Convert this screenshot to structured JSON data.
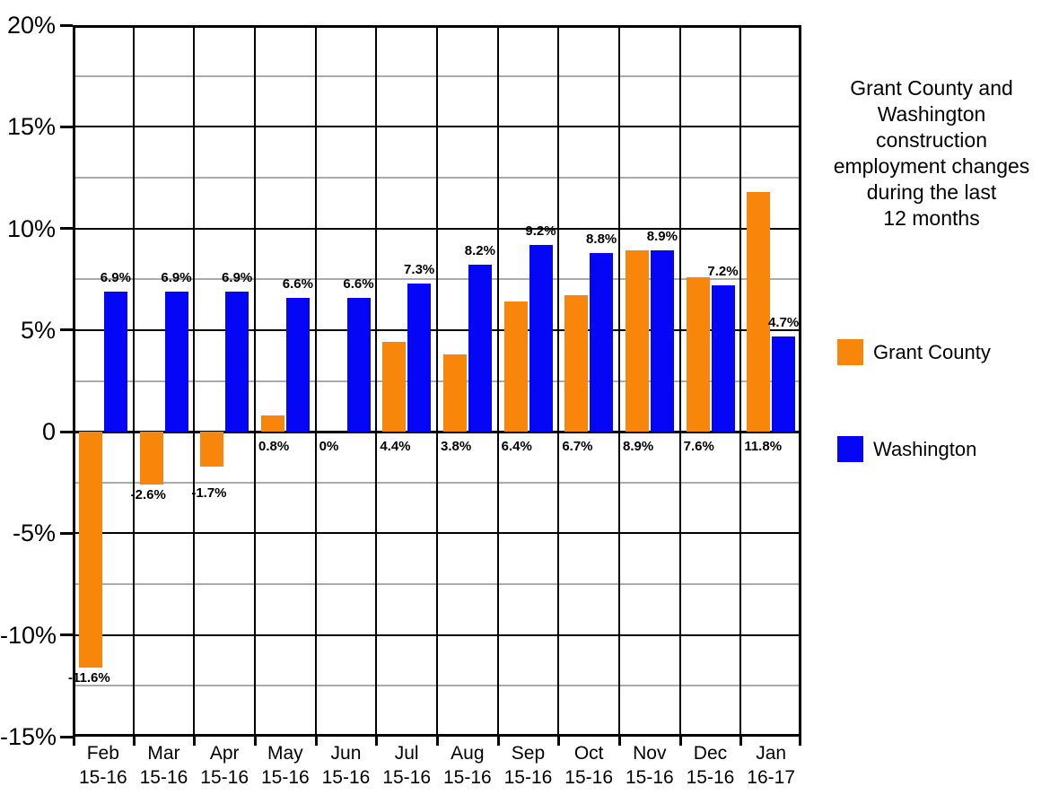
{
  "title": {
    "lines": [
      "Grant County and",
      "Washington",
      "construction",
      "employment changes",
      "during the last",
      "12 months"
    ]
  },
  "legend": {
    "position": "right",
    "items": [
      {
        "label": "Grant County",
        "color": "#F8860B"
      },
      {
        "label": "Washington",
        "color": "#0606F6"
      }
    ]
  },
  "chart_data": {
    "type": "bar",
    "title": "Grant County and Washington construction employment changes during the last 12 months",
    "categories": [
      "Feb 15-16",
      "Mar 15-16",
      "Apr 15-16",
      "May 15-16",
      "Jun 15-16",
      "Jul 15-16",
      "Aug 15-16",
      "Sep 15-16",
      "Oct 15-16",
      "Nov 15-16",
      "Dec 15-16",
      "Jan 16-17"
    ],
    "category_lines": [
      [
        "Feb",
        "15-16"
      ],
      [
        "Mar",
        "15-16"
      ],
      [
        "Apr",
        "15-16"
      ],
      [
        "May",
        "15-16"
      ],
      [
        "Jun",
        "15-16"
      ],
      [
        "Jul",
        "15-16"
      ],
      [
        "Aug",
        "15-16"
      ],
      [
        "Sep",
        "15-16"
      ],
      [
        "Oct",
        "15-16"
      ],
      [
        "Nov",
        "15-16"
      ],
      [
        "Dec",
        "15-16"
      ],
      [
        "Jan",
        "16-17"
      ]
    ],
    "series": [
      {
        "name": "Grant County",
        "color": "#F8860B",
        "values": [
          -11.6,
          -2.6,
          -1.7,
          0.8,
          0,
          4.4,
          3.8,
          6.4,
          6.7,
          8.9,
          7.6,
          11.8
        ],
        "labels": [
          "-11.6%",
          "-2.6%",
          "-1.7%",
          "0.8%",
          "0%",
          "4.4%",
          "3.8%",
          "6.4%",
          "6.7%",
          "8.9%",
          "7.6%",
          "11.8%"
        ]
      },
      {
        "name": "Washington",
        "color": "#0606F6",
        "values": [
          6.9,
          6.9,
          6.9,
          6.6,
          6.6,
          7.3,
          8.2,
          9.2,
          8.8,
          8.9,
          7.2,
          4.7
        ],
        "labels": [
          "6.9%",
          "6.9%",
          "6.9%",
          "6.6%",
          "6.6%",
          "7.3%",
          "8.2%",
          "9.2%",
          "8.8%",
          "8.9%",
          "7.2%",
          "4.7%"
        ]
      }
    ],
    "ylim": [
      -15,
      20
    ],
    "y_major_step": 5,
    "y_minor_step": 2.5,
    "y_tick_values": [
      20,
      15,
      10,
      5,
      0,
      -5,
      -10,
      -15
    ],
    "y_tick_labels": [
      "20%",
      "15%",
      "10%",
      "5%",
      "0",
      "-5%",
      "-10%",
      "-15%"
    ],
    "grid": true,
    "value_labels": true,
    "legend_position": "right"
  }
}
